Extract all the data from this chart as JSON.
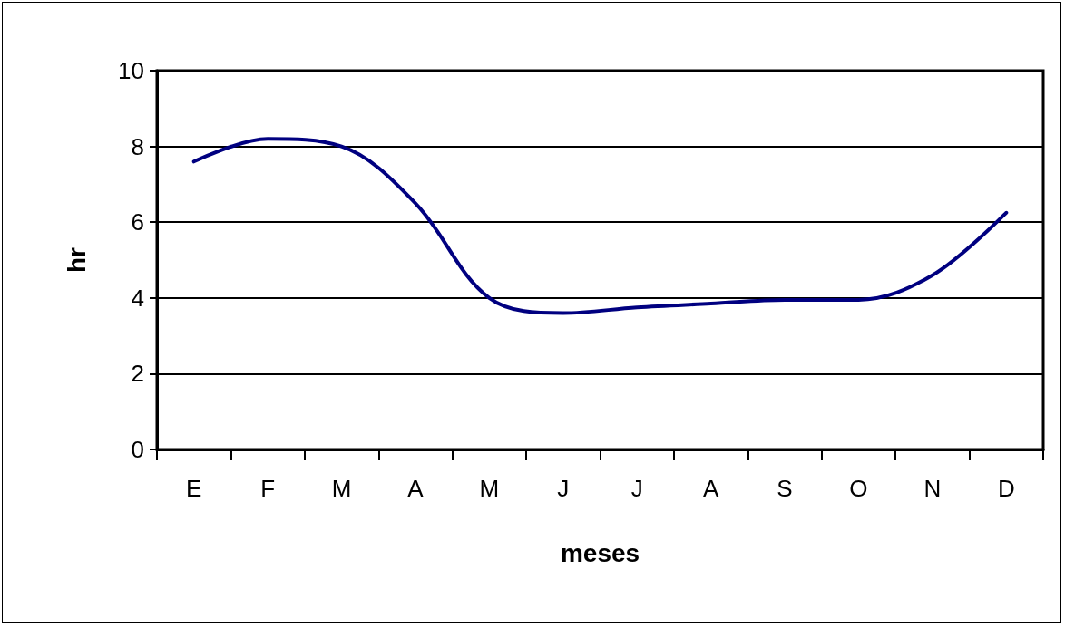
{
  "chart_data": {
    "type": "line",
    "xlabel": "meses",
    "ylabel": "hr",
    "categories": [
      "E",
      "F",
      "M",
      "A",
      "M",
      "J",
      "J",
      "A",
      "S",
      "O",
      "N",
      "D"
    ],
    "series": [
      {
        "color": "#000080",
        "values": [
          7.6,
          8.2,
          8.0,
          6.5,
          4.0,
          3.6,
          3.75,
          3.85,
          3.95,
          3.95,
          4.6,
          6.25
        ]
      }
    ],
    "ylim": [
      0,
      10
    ],
    "yticks": [
      0,
      2,
      4,
      6,
      8,
      10
    ],
    "grid": "y",
    "marker": "none",
    "line_style": "solid"
  }
}
